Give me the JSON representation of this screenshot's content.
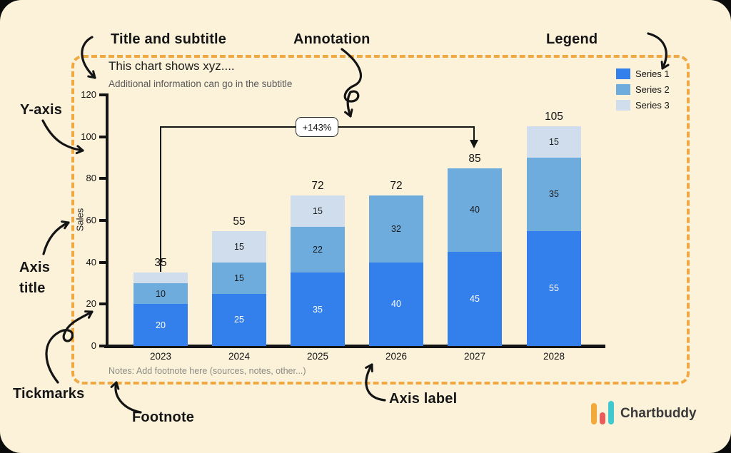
{
  "page": {
    "background": "#FCF2DA",
    "outer_background": "#0B0B0B",
    "frame_color": "#F0A843",
    "ink": "#141414"
  },
  "callouts": {
    "title_subtitle": "Title and subtitle",
    "annotation": "Annotation",
    "legend": "Legend",
    "y_axis": "Y-axis",
    "axis_title_line1": "Axis",
    "axis_title_line2": "title",
    "tickmarks": "Tickmarks",
    "footnote": "Footnote",
    "axis_label": "Axis label"
  },
  "chart_data": {
    "type": "bar",
    "stacked": true,
    "title": "This chart shows xyz....",
    "subtitle": "Additional information can go in the subtitle",
    "ylabel": "Sales",
    "footnote": "Notes: Add footnote here (sources, notes, other...)",
    "ylim": [
      0,
      120
    ],
    "yticks": [
      0,
      20,
      40,
      60,
      80,
      100,
      120
    ],
    "categories": [
      "2023",
      "2024",
      "2025",
      "2026",
      "2027",
      "2028"
    ],
    "series": [
      {
        "name": "Series 1",
        "color": "#3380ED",
        "value_label_color": "#FFFFFF",
        "values": [
          20,
          25,
          35,
          40,
          45,
          55
        ]
      },
      {
        "name": "Series 2",
        "color": "#6FACDE",
        "value_label_color": "#1A1A1A",
        "values": [
          10,
          15,
          22,
          32,
          40,
          35
        ]
      },
      {
        "name": "Series 3",
        "color": "#CFDDEC",
        "value_label_color": "#1A1A1A",
        "values": [
          5,
          15,
          15,
          0,
          0,
          15
        ]
      }
    ],
    "totals": [
      35,
      55,
      72,
      72,
      85,
      105
    ],
    "value_label_min": 10,
    "annotation": {
      "text": "+143%",
      "from_category": "2023",
      "to_category": "2027"
    },
    "legend_position": "top-right",
    "grid": false
  },
  "brand": {
    "name": "Chartbuddy",
    "logo_bar_colors": [
      "#F2A93B",
      "#E85C5C",
      "#3FC9CE"
    ]
  }
}
